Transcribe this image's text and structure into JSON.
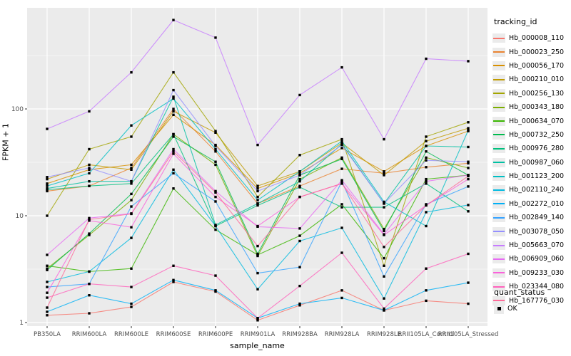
{
  "figure": {
    "background": "#ffffff",
    "panel_background": "#ebebeb",
    "grid_color": "#ffffff",
    "axis_text_color": "#4d4d4d",
    "tick_color": "#333333",
    "point_color": "#000000"
  },
  "chart_data": {
    "type": "line",
    "title": "",
    "xlabel": "sample_name",
    "ylabel": "FPKM + 1",
    "y_scale": "log10",
    "y_ticks": [
      1,
      10,
      100
    ],
    "y_minor_ticks": [
      3.162,
      31.62,
      316.2
    ],
    "ylim": [
      0.93,
      880
    ],
    "grid": true,
    "legend_position": "right",
    "legend_title": "tracking_id",
    "point_shape": "filled-square",
    "categories": [
      "PB350LA",
      "RRIM600LA",
      "RRIM600LE",
      "RRIM600SE",
      "RRIM600PE",
      "RRIM901LA",
      "RRIM928BA",
      "RRIM928LA",
      "RRIM928LE",
      "RRII105LA_Control",
      "RRII105LA_Stressed"
    ],
    "series": [
      {
        "name": "Hb_000008_110",
        "color": "#F8766D",
        "values": [
          1.17,
          1.22,
          1.4,
          2.4,
          1.95,
          1.05,
          1.45,
          2.0,
          1.3,
          1.6,
          1.5
        ]
      },
      {
        "name": "Hb_000023_250",
        "color": "#EA8331",
        "values": [
          17,
          19,
          28,
          100,
          40,
          13,
          19,
          27.5,
          25,
          28.5,
          31
        ]
      },
      {
        "name": "Hb_000056_170",
        "color": "#D89000",
        "values": [
          20,
          27,
          30,
          88,
          46,
          18,
          25,
          43,
          26,
          45,
          62
        ]
      },
      {
        "name": "Hb_000210_010",
        "color": "#C09B00",
        "values": [
          22,
          30,
          27,
          95,
          60,
          19,
          26,
          48,
          24,
          50,
          66
        ]
      },
      {
        "name": "Hb_000256_130",
        "color": "#A3A500",
        "values": [
          10,
          42,
          55,
          220,
          62,
          15,
          37,
          52,
          3.4,
          55,
          75
        ]
      },
      {
        "name": "Hb_000343_180",
        "color": "#7CAE00",
        "values": [
          3.2,
          6.6,
          14,
          58,
          30,
          4.2,
          22,
          35,
          7.5,
          35,
          28
        ]
      },
      {
        "name": "Hb_000634_070",
        "color": "#39B600",
        "values": [
          3.4,
          3.0,
          3.2,
          18,
          7.4,
          4.3,
          6.5,
          12.8,
          4.0,
          22,
          24
        ]
      },
      {
        "name": "Hb_000732_250",
        "color": "#00BB4E",
        "values": [
          3.1,
          6.8,
          16,
          55,
          32,
          4.4,
          24,
          34,
          7.2,
          40,
          24
        ]
      },
      {
        "name": "Hb_000976_280",
        "color": "#00BF7D",
        "values": [
          17.5,
          19,
          20,
          58,
          8.0,
          12.5,
          18.5,
          12,
          12,
          20,
          11
        ]
      },
      {
        "name": "Hb_000987_060",
        "color": "#00C1A3",
        "values": [
          18,
          21,
          21,
          130,
          8.2,
          13,
          21,
          47,
          13,
          45,
          44
        ]
      },
      {
        "name": "Hb_001123_200",
        "color": "#00BFC4",
        "values": [
          19,
          25,
          70,
          125,
          42,
          14,
          26,
          50,
          13.5,
          8.0,
          63
        ]
      },
      {
        "name": "Hb_002110_240",
        "color": "#00BAE0",
        "values": [
          2.4,
          3.0,
          6.2,
          27,
          8.0,
          2.05,
          5.8,
          7.7,
          1.68,
          10.8,
          12.6
        ]
      },
      {
        "name": "Hb_002272_010",
        "color": "#00B0F6",
        "values": [
          1.26,
          1.8,
          1.5,
          2.5,
          2.0,
          1.1,
          1.5,
          1.7,
          1.3,
          2.0,
          2.36
        ]
      },
      {
        "name": "Hb_002849_140",
        "color": "#35A2FF",
        "values": [
          2.15,
          2.3,
          12.2,
          25,
          13.6,
          2.9,
          3.3,
          21,
          2.7,
          12.8,
          18.8
        ]
      },
      {
        "name": "Hb_003078_050",
        "color": "#9590FF",
        "values": [
          23,
          28,
          21,
          150,
          45,
          17,
          24,
          46,
          13,
          33,
          32
        ]
      },
      {
        "name": "Hb_005663_070",
        "color": "#C77CFF",
        "values": [
          65,
          95,
          220,
          680,
          465,
          46,
          135,
          245,
          52,
          295,
          280
        ]
      },
      {
        "name": "Hb_006909_060",
        "color": "#E76BF3",
        "values": [
          4.3,
          9.5,
          10.5,
          42,
          17,
          7.9,
          7.6,
          21.5,
          6.7,
          21,
          24
        ]
      },
      {
        "name": "Hb_009233_030",
        "color": "#FA62DB",
        "values": [
          1.9,
          9.0,
          7.8,
          38,
          15,
          8.0,
          15,
          20,
          6.6,
          12.5,
          22
        ]
      },
      {
        "name": "Hb_023344_080",
        "color": "#FF62BC",
        "values": [
          1.71,
          2.3,
          2.15,
          3.4,
          2.75,
          1.1,
          2.2,
          4.5,
          1.35,
          3.2,
          4.4
        ]
      },
      {
        "name": "Hb_167776_030",
        "color": "#FF6A98",
        "values": [
          1.38,
          9.2,
          10.4,
          40,
          16.5,
          5.2,
          15,
          20,
          5.1,
          12.5,
          23.5
        ]
      }
    ],
    "quant_status": {
      "title": "quant_status",
      "items": [
        {
          "label": "OK",
          "marker": "black-square"
        }
      ]
    }
  }
}
